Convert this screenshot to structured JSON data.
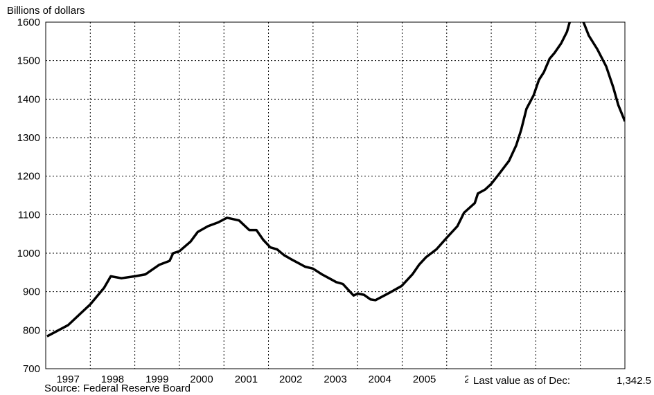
{
  "chart_data": {
    "type": "line",
    "y_axis_label": "Billions of dollars",
    "source": "Source: Federal Reserve Board",
    "last_value": {
      "label": "Last value as of Dec:",
      "value": 1342.5,
      "value_label": "1,342.5"
    },
    "x": [
      1997.03,
      1997.5,
      1998.0,
      1998.31,
      1998.46,
      1998.7,
      1999.0,
      1999.24,
      1999.55,
      1999.78,
      1999.86,
      2000.0,
      2000.25,
      2000.41,
      2000.64,
      2000.87,
      2001.07,
      2001.34,
      2001.57,
      2001.73,
      2001.88,
      2002.04,
      2002.19,
      2002.35,
      2002.5,
      2002.66,
      2002.82,
      2003.0,
      2003.2,
      2003.36,
      2003.52,
      2003.67,
      2003.83,
      2003.91,
      2004.0,
      2004.14,
      2004.29,
      2004.4,
      2004.6,
      2004.76,
      2004.99,
      2005.23,
      2005.38,
      2005.54,
      2005.77,
      2006.0,
      2006.24,
      2006.39,
      2006.63,
      2006.7,
      2006.86,
      2007.0,
      2007.17,
      2007.4,
      2007.56,
      2007.67,
      2007.79,
      2007.95,
      2008.07,
      2008.18,
      2008.31,
      2008.42,
      2008.57,
      2008.7,
      2008.76,
      2008.88,
      2009.07,
      2009.19,
      2009.38,
      2009.58,
      2009.74,
      2009.85,
      2010.0
    ],
    "series": [
      {
        "name": "Total",
        "color": "#000000",
        "values": [
          784,
          813,
          867,
          910,
          940,
          935,
          940,
          945,
          970,
          980,
          1000,
          1005,
          1030,
          1055,
          1070,
          1080,
          1092,
          1085,
          1060,
          1060,
          1035,
          1015,
          1010,
          995,
          985,
          975,
          965,
          960,
          945,
          935,
          925,
          920,
          900,
          890,
          895,
          892,
          880,
          878,
          890,
          900,
          915,
          945,
          970,
          990,
          1010,
          1040,
          1070,
          1105,
          1130,
          1155,
          1165,
          1180,
          1205,
          1240,
          1280,
          1320,
          1375,
          1410,
          1450,
          1470,
          1505,
          1520,
          1545,
          1575,
          1600,
          1640,
          1600,
          1565,
          1530,
          1485,
          1430,
          1385,
          1342.5
        ]
      }
    ],
    "xlim": [
      1997,
      2010
    ],
    "xticks": [
      1998,
      1999,
      2000,
      2001,
      2002,
      2003,
      2004,
      2005,
      2006,
      2007,
      2008,
      2009
    ],
    "x_labels": [
      "1997",
      "1998",
      "1999",
      "2000",
      "2001",
      "2002",
      "2003",
      "2004",
      "2005",
      "2("
    ],
    "ylim": [
      700,
      1600
    ],
    "yticks": [
      700,
      800,
      900,
      1000,
      1100,
      1200,
      1300,
      1400,
      1500,
      1600
    ],
    "grid": true
  }
}
